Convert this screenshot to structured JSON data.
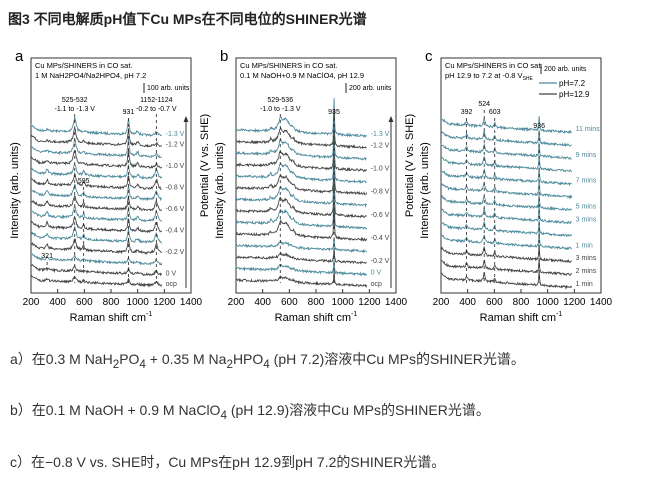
{
  "title": "图3 不同电解质pH值下Cu MPs在不同电位的SHINER光谱",
  "captions": [
    {
      "pre": "a）在0.3 M NaH",
      "s1": "2",
      "m1": "PO",
      "s2": "4",
      "m2": " + 0.35 M Na",
      "s3": "2",
      "m3": "HPO",
      "s4": "4",
      "post": " (pH 7.2)溶液中Cu MPs的SHINER光谱。"
    },
    {
      "pre": "b）在0.1 M NaOH + 0.9 M NaClO",
      "s1": "4",
      "post": " (pH 12.9)溶液中Cu MPs的SHINER光谱。"
    },
    {
      "pre": "c）在−0.8 V vs. SHE时，Cu MPs在pH 12.9到pH 7.2的SHINER光谱。"
    }
  ],
  "colors": {
    "teal": "#4d8a9c",
    "dark": "#454545"
  },
  "chart_data": [
    {
      "type": "line",
      "panel": "a",
      "line1": "Cu MPs/SHINERS in CO sat.",
      "line2": "1 M NaH2PO4/Na2HPO4, pH 7.2",
      "scale": "100 arb. units",
      "xlabel": "Raman shift cm-1",
      "ylabel": "Intensity (arb. units)",
      "ylabel_right": "Potential (V vs. SHE)",
      "xlim": [
        200,
        1400
      ],
      "xticks": [
        200,
        400,
        600,
        800,
        1000,
        1200,
        1400
      ],
      "annotations": [
        {
          "x": 528,
          "text": "525-532",
          "text2": "-1.1 to -1.3 V"
        },
        {
          "x": 931,
          "text": "931"
        },
        {
          "x": 1140,
          "text": "1152-1124",
          "text2": "-0.2 to -0.7 V"
        },
        {
          "x": 595,
          "text": "595"
        },
        {
          "x": 321,
          "text": "321"
        }
      ],
      "traces": [
        {
          "label": "-1.3 V",
          "c": "teal"
        },
        {
          "label": "-1.2 V",
          "c": "dark"
        },
        {
          "label": "",
          "c": "teal"
        },
        {
          "label": "-1.0 V",
          "c": "dark"
        },
        {
          "label": "",
          "c": "teal"
        },
        {
          "label": "-0.8 V",
          "c": "dark"
        },
        {
          "label": "",
          "c": "teal"
        },
        {
          "label": "-0.6 V",
          "c": "dark"
        },
        {
          "label": "",
          "c": "teal"
        },
        {
          "label": "-0.4 V",
          "c": "dark"
        },
        {
          "label": "",
          "c": "teal"
        },
        {
          "label": "-0.2 V",
          "c": "dark"
        },
        {
          "label": "",
          "c": "teal"
        },
        {
          "label": "0 V",
          "c": "dark"
        },
        {
          "label": "ocp",
          "c": "dark"
        }
      ]
    },
    {
      "type": "line",
      "panel": "b",
      "line1": "Cu MPs/SHINERS in CO sat.",
      "line2": "0.1 M NaOH+0.9 M NaClO4, pH 12.9",
      "scale": "200 arb. units",
      "xlabel": "Raman shift cm-1",
      "ylabel": "Intensity (arb. units)",
      "ylabel_right": "Potential (V vs. SHE)",
      "xlim": [
        200,
        1400
      ],
      "xticks": [
        200,
        400,
        600,
        800,
        1000,
        1200,
        1400
      ],
      "annotations": [
        {
          "x": 532,
          "text": "529-536",
          "text2": "-1.0 to -1.3 V"
        },
        {
          "x": 935,
          "text": "935"
        }
      ],
      "traces": [
        {
          "label": "-1.3 V",
          "c": "teal"
        },
        {
          "label": "-1.2 V",
          "c": "dark"
        },
        {
          "label": "",
          "c": "teal"
        },
        {
          "label": "-1.0 V",
          "c": "dark"
        },
        {
          "label": "",
          "c": "teal"
        },
        {
          "label": "-0.8 V",
          "c": "dark"
        },
        {
          "label": "",
          "c": "teal"
        },
        {
          "label": "-0.6 V",
          "c": "dark"
        },
        {
          "label": "",
          "c": "teal"
        },
        {
          "label": "-0.4 V",
          "c": "dark"
        },
        {
          "label": "",
          "c": "teal"
        },
        {
          "label": "-0.2 V",
          "c": "dark"
        },
        {
          "label": "0 V",
          "c": "teal"
        },
        {
          "label": "ocp",
          "c": "dark"
        }
      ]
    },
    {
      "type": "line",
      "panel": "c",
      "line1": "Cu MPs/SHINERS in CO sat.",
      "line2": "pH 12.9 to 7.2 at -0.8 V",
      "line2_sub": "SHE",
      "scale": "200 arb. units",
      "xlabel": "Raman shift cm-1",
      "ylabel": "Intensity (arb. units)",
      "legend": [
        {
          "name": "pH=7.2",
          "c": "teal"
        },
        {
          "name": "pH=12.9",
          "c": "dark"
        }
      ],
      "xlim": [
        200,
        1400
      ],
      "xticks": [
        200,
        400,
        600,
        800,
        1000,
        1200,
        1400
      ],
      "annotations": [
        {
          "x": 392,
          "text": "392"
        },
        {
          "x": 524,
          "text": "524"
        },
        {
          "x": 603,
          "text": "603"
        },
        {
          "x": 936,
          "text": "936"
        }
      ],
      "traces": [
        {
          "label": "11 mins",
          "c": "teal"
        },
        {
          "label": "",
          "c": "teal"
        },
        {
          "label": "9 mins",
          "c": "teal"
        },
        {
          "label": "",
          "c": "teal"
        },
        {
          "label": "7 mins",
          "c": "teal"
        },
        {
          "label": "",
          "c": "teal"
        },
        {
          "label": "5 mins",
          "c": "teal"
        },
        {
          "label": "3 mins",
          "c": "teal"
        },
        {
          "label": "",
          "c": "teal"
        },
        {
          "label": "1 min",
          "c": "teal"
        },
        {
          "label": "3 mins",
          "c": "dark"
        },
        {
          "label": "2 mins",
          "c": "dark"
        },
        {
          "label": "1 min",
          "c": "dark"
        }
      ]
    }
  ]
}
